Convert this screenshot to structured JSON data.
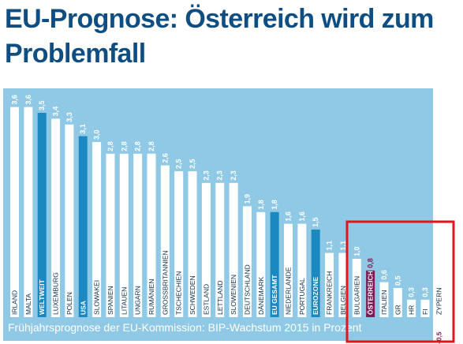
{
  "title": "EU-Prognose: Österreich wird zum Problemfall",
  "colors": {
    "panel": "#8fc9e6",
    "bar": "#ffffff",
    "highlight_bar": "#1b89bf",
    "austria_bar": "#7a1d55",
    "negative_bar": "#ffffff",
    "highlight_box": "#e0151f",
    "value_label": "#ffffff",
    "category_label": "#0d2f4a",
    "highlight_text": "#ffffff"
  },
  "chart_data": {
    "type": "bar",
    "title": "Frühjahrsprognose der EU-Kommission: BIP-Wachstum 2015 in Prozent",
    "xlabel": "",
    "ylabel": "",
    "ylim": [
      -0.5,
      3.6
    ],
    "grid": false,
    "categories": [
      "IRLAND",
      "MALTA",
      "WELTWEIT",
      "LUXEMBURG",
      "POLEN",
      "USA",
      "SLOWAKEI",
      "SPANIEN",
      "LITAUEN",
      "UNGARN",
      "RUMÄNIEN",
      "GROSSBRITANNIEN",
      "TSCHECHIEN",
      "SCHWEDEN",
      "ESTLAND",
      "LETTLAND",
      "SLOWENIEN",
      "DEUTSCHLAND",
      "DÄNEMARK",
      "EU GESAMT",
      "NIEDERLANDE",
      "PORTUGAL",
      "EUROZONE",
      "FRANKREICH",
      "BELGIEN",
      "BULGARIEN",
      "ÖSTERREICH",
      "ITALIEN",
      "GR",
      "HR",
      "FI",
      "ZYPERN"
    ],
    "values": [
      3.6,
      3.6,
      3.5,
      3.4,
      3.3,
      3.1,
      3.0,
      2.8,
      2.8,
      2.8,
      2.8,
      2.6,
      2.5,
      2.5,
      2.3,
      2.3,
      2.3,
      1.9,
      1.8,
      1.8,
      1.6,
      1.6,
      1.5,
      1.1,
      1.1,
      1.0,
      0.8,
      0.6,
      0.5,
      0.3,
      0.3,
      -0.5
    ],
    "value_labels": [
      "3,6",
      "3,6",
      "3,5",
      "3,4",
      "3,3",
      "3,1",
      "3,0",
      "2,8",
      "2,8",
      "2,8",
      "2,8",
      "2,6",
      "2,5",
      "2,5",
      "2,3",
      "2,3",
      "2,3",
      "1,9",
      "1,8",
      "1,8",
      "1,6",
      "1,6",
      "1,5",
      "1,1",
      "1,1",
      "1,0",
      "0,8",
      "0,6",
      "0,5",
      "0,3",
      "0,3",
      "–0,5"
    ],
    "highlight": {
      "WELTWEIT": "world",
      "USA": "world",
      "EU GESAMT": "aggregate",
      "EUROZONE": "aggregate",
      "ÖSTERREICH": "austria"
    },
    "callout_box_categories": [
      "ÖSTERREICH",
      "ITALIEN",
      "GR",
      "HR",
      "FI",
      "ZYPERN"
    ]
  }
}
